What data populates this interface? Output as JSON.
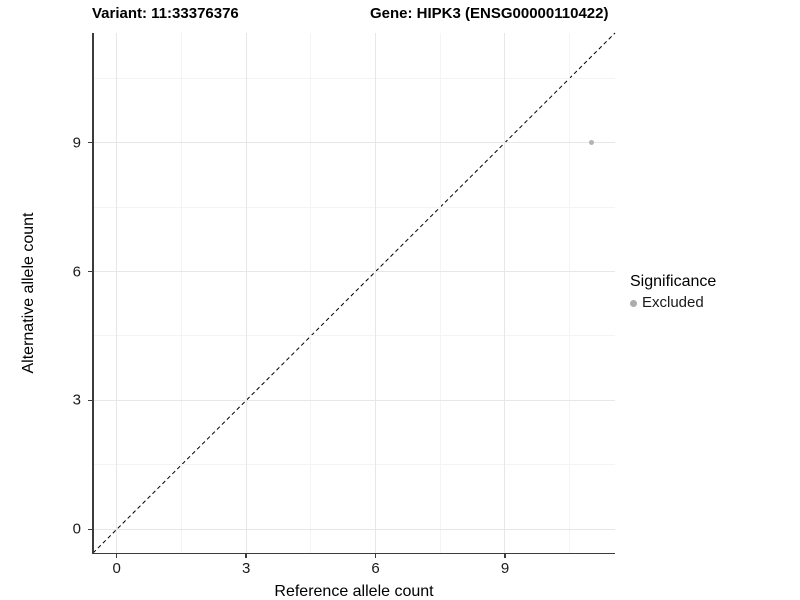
{
  "titles": {
    "variant": "Variant: 11:33376376",
    "gene": "Gene: HIPK3 (ENSG00000110422)"
  },
  "chart_data": {
    "type": "scatter",
    "title_left": "Variant: 11:33376376",
    "title_right": "Gene: HIPK3 (ENSG00000110422)",
    "xlabel": "Reference allele count",
    "ylabel": "Alternative allele count",
    "xlim": [
      -0.55,
      11.55
    ],
    "ylim": [
      -0.55,
      11.55
    ],
    "x_major_breaks": [
      0,
      3,
      6,
      9
    ],
    "x_minor_breaks": [
      1.5,
      4.5,
      7.5,
      10.5
    ],
    "y_major_breaks": [
      0,
      3,
      6,
      9
    ],
    "y_minor_breaks": [
      1.5,
      4.5,
      7.5,
      10.5
    ],
    "x_tick_labels": [
      "0",
      "3",
      "6",
      "9"
    ],
    "y_tick_labels": [
      "0",
      "3",
      "6",
      "9"
    ],
    "grid": true,
    "reference_line": {
      "style": "dashed",
      "color": "#000000",
      "from": [
        -0.55,
        -0.55
      ],
      "to": [
        11.55,
        11.55
      ]
    },
    "series": [
      {
        "name": "Excluded",
        "color": "#b3b3b3",
        "points": [
          {
            "x": 11,
            "y": 9
          }
        ]
      }
    ],
    "legend": {
      "title": "Significance",
      "position": "right",
      "entries": [
        {
          "label": "Excluded",
          "color": "#adadad"
        }
      ]
    }
  },
  "colors": {
    "background": "#ffffff",
    "grid_major": "#e7e7e7",
    "grid_minor": "#f4f4f4",
    "axis_line": "#3c3c3c",
    "text": "#1a1a1a",
    "point": "#b3b3b3"
  }
}
